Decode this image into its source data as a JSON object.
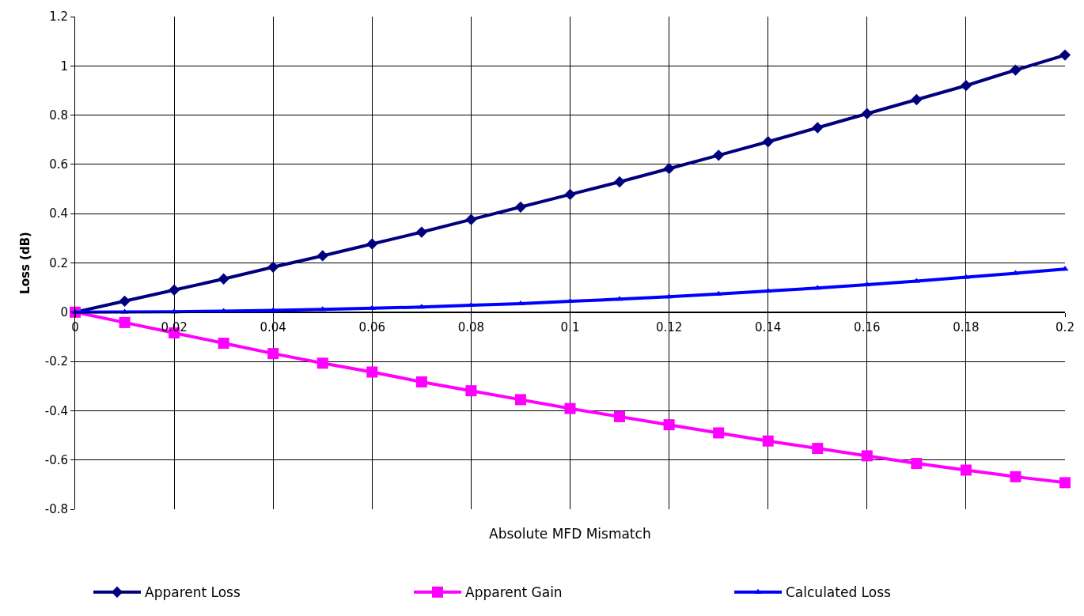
{
  "chart_data": {
    "type": "line",
    "xlabel": "Absolute MFD Mismatch",
    "ylabel": "Loss (dB)",
    "x": [
      0,
      0.01,
      0.02,
      0.03,
      0.04,
      0.05,
      0.06,
      0.07,
      0.08,
      0.09,
      0.1,
      0.11,
      0.12,
      0.13,
      0.14,
      0.15,
      0.16,
      0.17,
      0.18,
      0.19,
      0.2
    ],
    "series": [
      {
        "name": "Apparent Loss",
        "color": "#00007f",
        "marker": "diamond",
        "values": [
          0,
          0.045,
          0.09,
          0.135,
          0.183,
          0.229,
          0.277,
          0.325,
          0.376,
          0.427,
          0.478,
          0.529,
          0.583,
          0.637,
          0.692,
          0.749,
          0.806,
          0.863,
          0.92,
          0.983,
          1.044
        ]
      },
      {
        "name": "Apparent Gain",
        "color": "#ff00ff",
        "marker": "square",
        "values": [
          0,
          -0.042,
          -0.084,
          -0.126,
          -0.168,
          -0.207,
          -0.243,
          -0.283,
          -0.319,
          -0.355,
          -0.391,
          -0.424,
          -0.457,
          -0.49,
          -0.523,
          -0.553,
          -0.583,
          -0.614,
          -0.641,
          -0.668,
          -0.692
        ]
      },
      {
        "name": "Calculated Loss",
        "color": "#0000ff",
        "marker": "triangle",
        "values": [
          0,
          0.001,
          0.002,
          0.004,
          0.007,
          0.011,
          0.016,
          0.021,
          0.028,
          0.035,
          0.044,
          0.053,
          0.063,
          0.074,
          0.086,
          0.098,
          0.112,
          0.126,
          0.142,
          0.158,
          0.175
        ]
      }
    ],
    "xlim": [
      0,
      0.2
    ],
    "xticks": [
      0,
      0.02,
      0.04,
      0.06,
      0.08,
      0.1,
      0.12,
      0.14,
      0.16,
      0.18,
      0.2
    ],
    "ylim": [
      -0.8,
      1.2
    ],
    "yticks": [
      -0.8,
      -0.6,
      -0.4,
      -0.2,
      0,
      0.2,
      0.4,
      0.6,
      0.8,
      1,
      1.2
    ],
    "grid": true,
    "legend": "bottom",
    "line_style": "solid"
  }
}
